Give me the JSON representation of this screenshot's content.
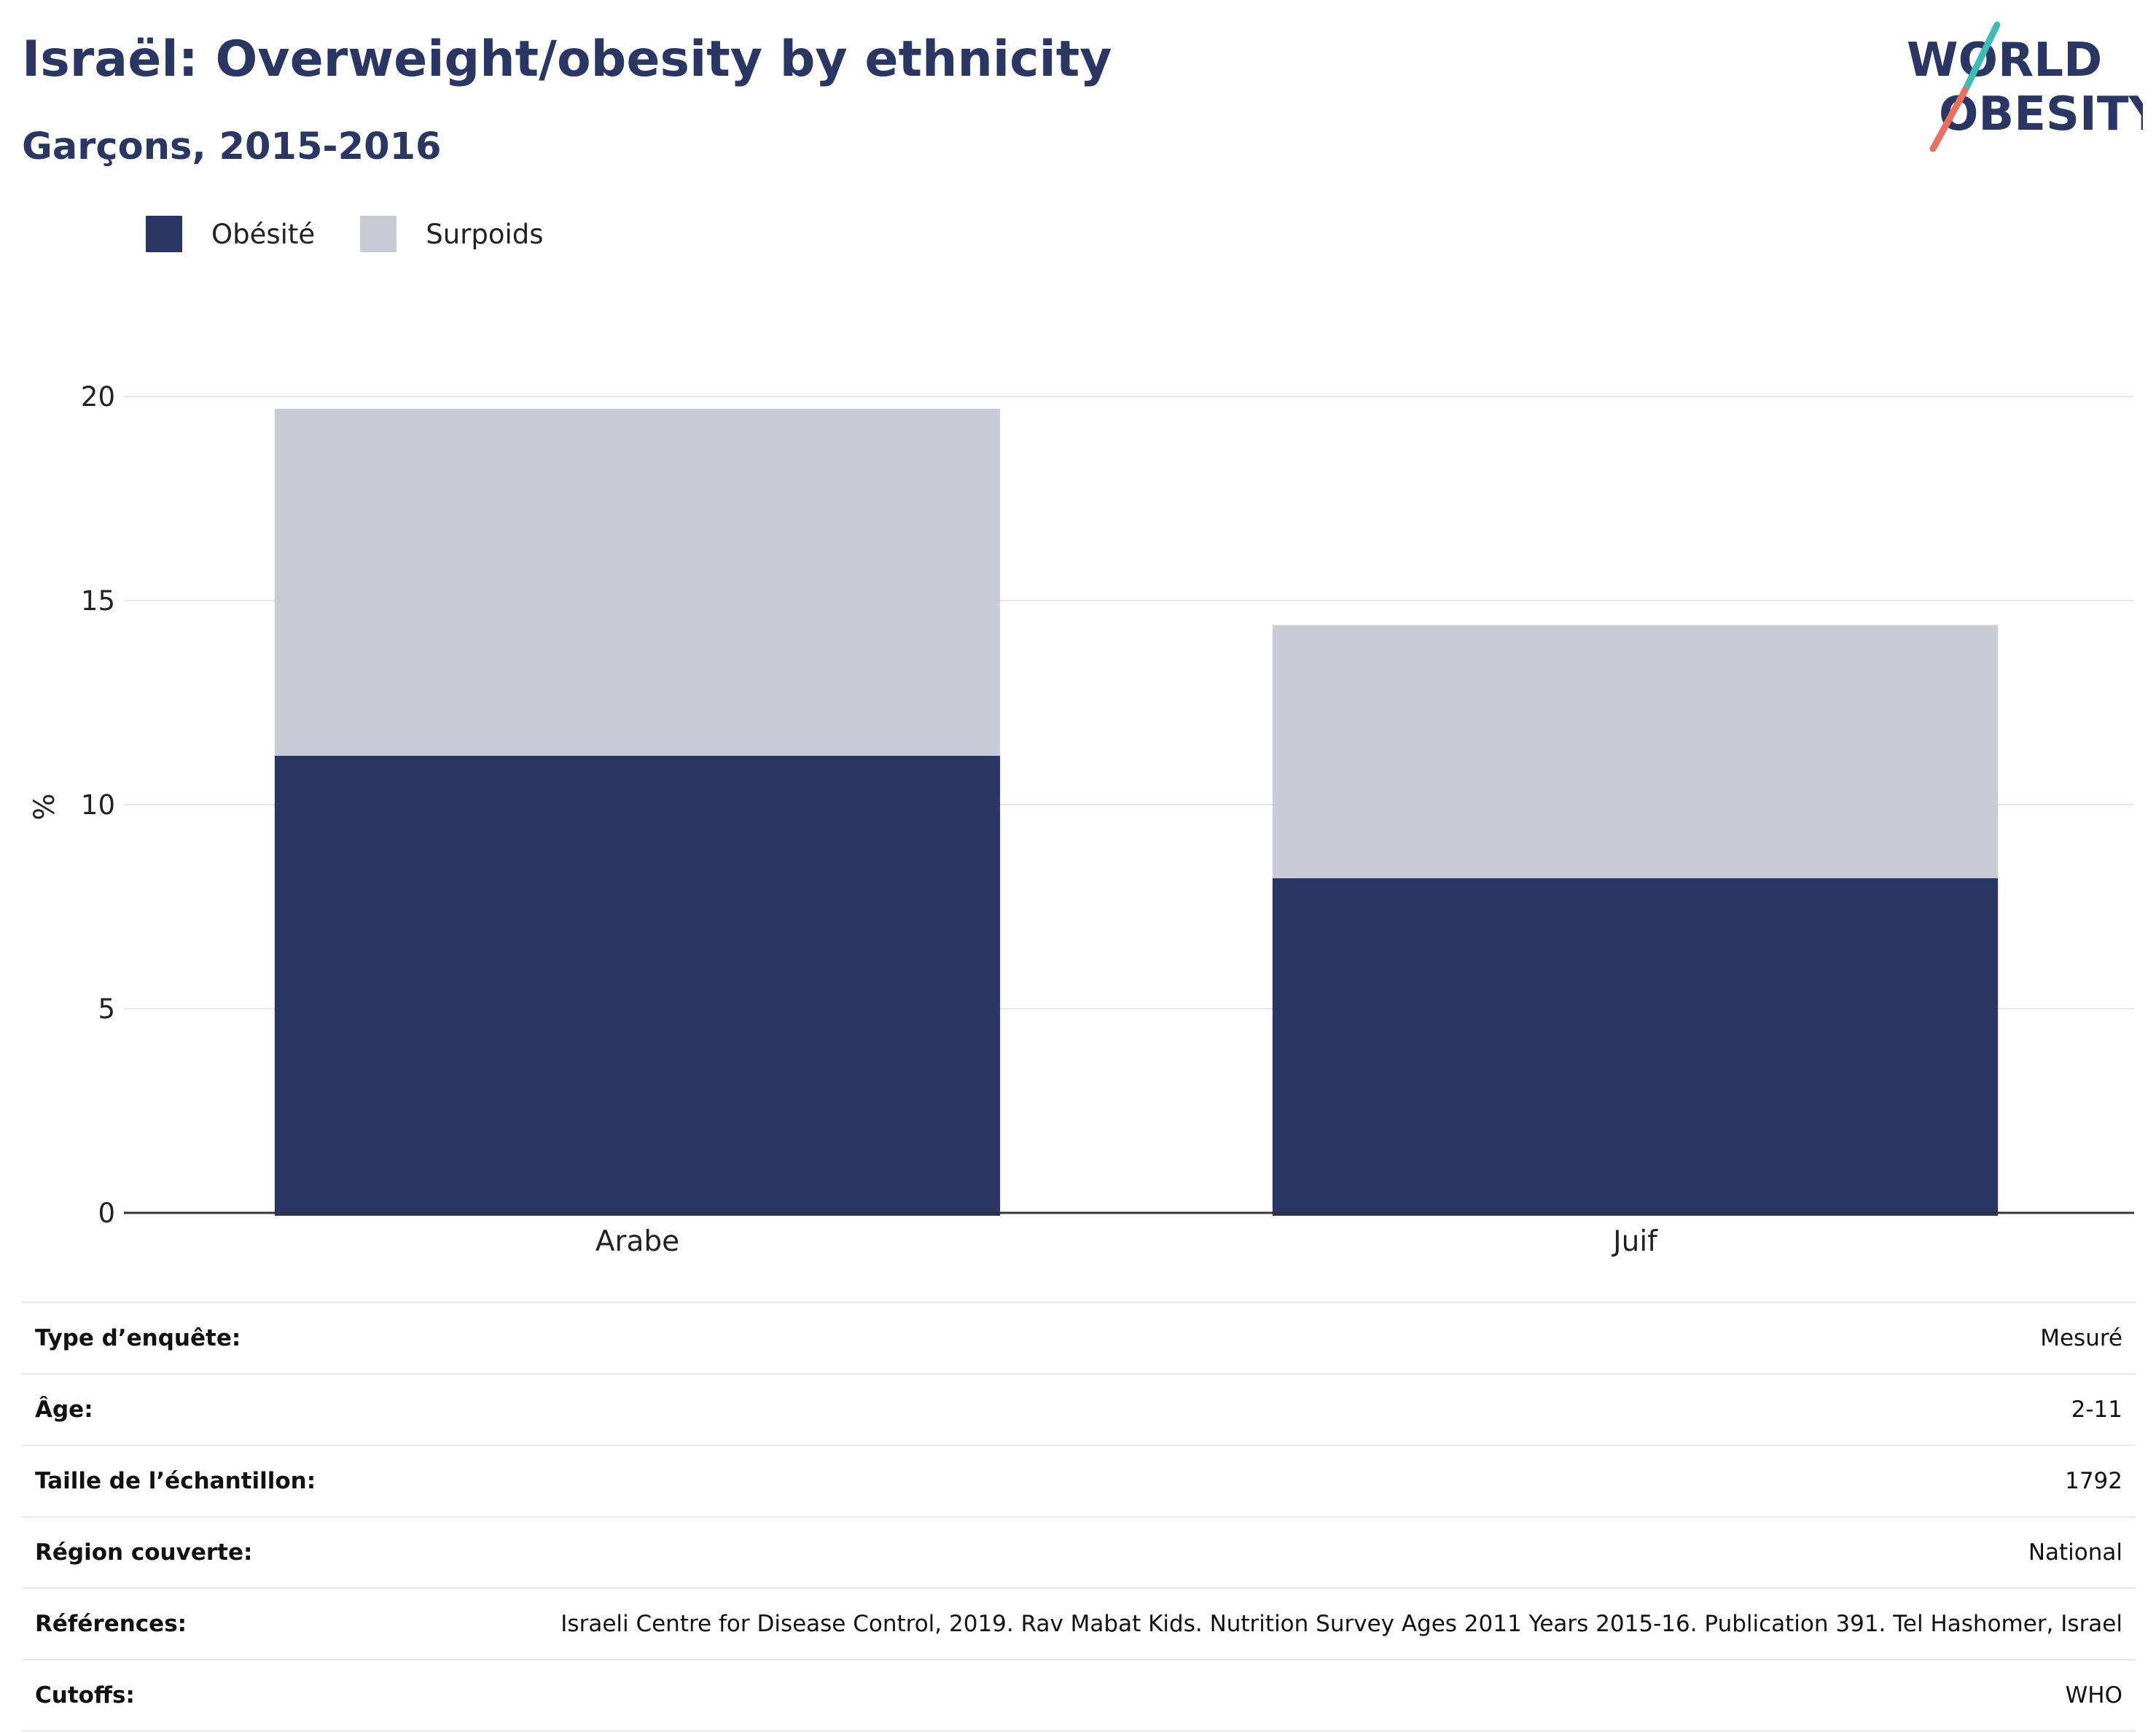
{
  "header": {
    "title": "Israël: Overweight/obesity by ethnicity",
    "subtitle": "Garçons, 2015-2016"
  },
  "logo": {
    "line1": "WORLD",
    "line2": "OBESITY"
  },
  "colors": {
    "title": "#2a3663",
    "obesity": "#2a3663",
    "overweight": "#c9ccd7",
    "grid": "#e6e8ef",
    "axis": "#333333"
  },
  "legend": [
    {
      "label": "Obésité",
      "color": "#2a3663"
    },
    {
      "label": "Surpoids",
      "color": "#c9ccd7"
    }
  ],
  "chart_data": {
    "type": "bar",
    "stacked": true,
    "categories": [
      "Arabe",
      "Juif"
    ],
    "series": [
      {
        "name": "Obésité",
        "values": [
          11.2,
          8.2
        ]
      },
      {
        "name": "Surpoids",
        "values": [
          8.5,
          6.2
        ]
      }
    ],
    "ylabel": "%",
    "ylim": [
      0,
      20
    ],
    "yticks": [
      0,
      5,
      10,
      15,
      20
    ],
    "grid": true,
    "legend_position": "top-left"
  },
  "info_table": [
    {
      "key": "Type d’enquête:",
      "value": "Mesuré"
    },
    {
      "key": "Âge:",
      "value": "2-11"
    },
    {
      "key": "Taille de l’échantillon:",
      "value": "1792"
    },
    {
      "key": "Région couverte:",
      "value": "National"
    },
    {
      "key": "Références:",
      "value": "Israeli Centre for Disease Control, 2019. Rav Mabat Kids. Nutrition Survey Ages 2011 Years 2015-16. Publication 391. Tel Hashomer, Israel"
    },
    {
      "key": "Cutoffs:",
      "value": "WHO"
    }
  ]
}
